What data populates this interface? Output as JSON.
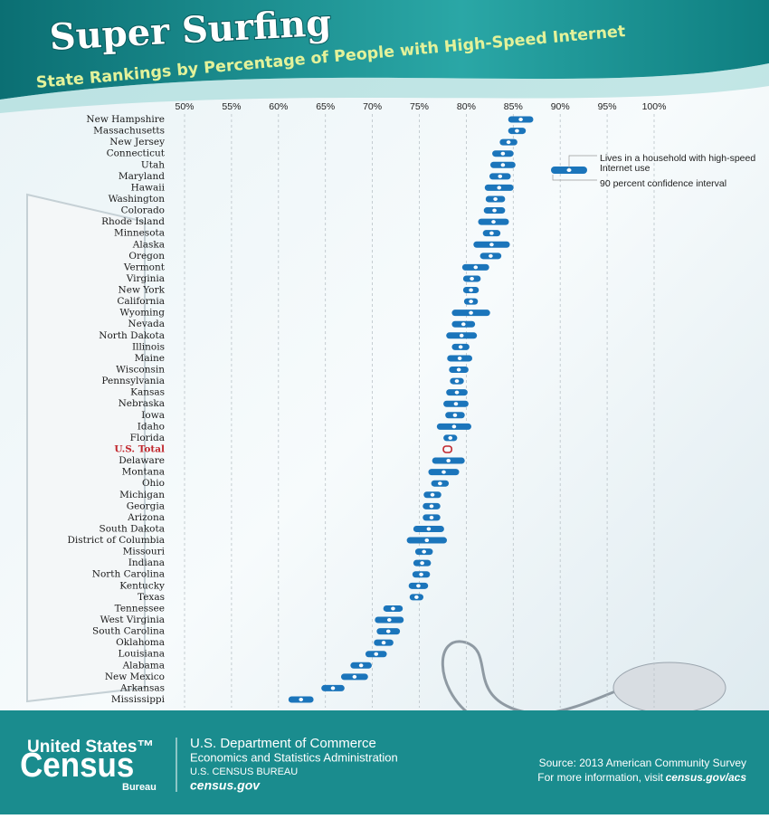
{
  "header": {
    "title": "Super Surfing",
    "subtitle": "State Rankings by Percentage of People with High-Speed Internet"
  },
  "chart_data": {
    "type": "dot-interval",
    "categories": [
      "New Hampshire",
      "Massachusetts",
      "New Jersey",
      "Connecticut",
      "Utah",
      "Maryland",
      "Hawaii",
      "Washington",
      "Colorado",
      "Rhode Island",
      "Minnesota",
      "Alaska",
      "Oregon",
      "Vermont",
      "Virginia",
      "New York",
      "California",
      "Wyoming",
      "Nevada",
      "North Dakota",
      "Illinois",
      "Maine",
      "Wisconsin",
      "Pennsylvania",
      "Kansas",
      "Nebraska",
      "Iowa",
      "Idaho",
      "Florida",
      "U.S. Total",
      "Delaware",
      "Montana",
      "Ohio",
      "Michigan",
      "Georgia",
      "Arizona",
      "South Dakota",
      "District of Columbia",
      "Missouri",
      "Indiana",
      "North Carolina",
      "Kentucky",
      "Texas",
      "Tennessee",
      "West Virginia",
      "South Carolina",
      "Oklahoma",
      "Louisiana",
      "Alabama",
      "New Mexico",
      "Arkansas",
      "Mississippi"
    ],
    "category_colors": [
      "#1a1a1a",
      "#1a1a1a",
      "#1a1a1a",
      "#1a1a1a",
      "#1a1a1a",
      "#1a1a1a",
      "#1a1a1a",
      "#1a1a1a",
      "#1a1a1a",
      "#1a1a1a",
      "#1a1a1a",
      "#1a1a1a",
      "#1a1a1a",
      "#1a1a1a",
      "#1a1a1a",
      "#1a1a1a",
      "#1a1a1a",
      "#1a1a1a",
      "#1a1a1a",
      "#1a1a1a",
      "#1a1a1a",
      "#1a1a1a",
      "#1a1a1a",
      "#1a1a1a",
      "#1a1a1a",
      "#1a1a1a",
      "#1a1a1a",
      "#1a1a1a",
      "#1a1a1a",
      "#c1272d",
      "#1a1a1a",
      "#1a1a1a",
      "#1a1a1a",
      "#1a1a1a",
      "#1a1a1a",
      "#1a1a1a",
      "#1a1a1a",
      "#1a1a1a",
      "#1a1a1a",
      "#1a1a1a",
      "#1a1a1a",
      "#1a1a1a",
      "#1a1a1a",
      "#1a1a1a",
      "#1a1a1a",
      "#1a1a1a",
      "#1a1a1a",
      "#1a1a1a",
      "#1a1a1a",
      "#1a1a1a",
      "#1a1a1a",
      "#1a1a1a"
    ],
    "series": [
      {
        "name": "Lives in a household with high-speed Internet use",
        "color": "#1b75bb",
        "values": [
          85.8,
          85.4,
          84.5,
          83.9,
          83.9,
          83.6,
          83.5,
          83.1,
          83.0,
          82.9,
          82.7,
          82.7,
          82.6,
          81.0,
          80.6,
          80.5,
          80.5,
          80.5,
          79.7,
          79.5,
          79.4,
          79.3,
          79.2,
          79.0,
          79.0,
          78.9,
          78.8,
          78.7,
          78.3,
          78.0,
          78.1,
          77.6,
          77.2,
          76.4,
          76.3,
          76.3,
          76.0,
          75.8,
          75.5,
          75.3,
          75.2,
          74.9,
          74.7,
          72.2,
          71.8,
          71.7,
          71.2,
          70.4,
          68.8,
          68.1,
          65.8,
          62.4
        ],
        "errors": [
          1.0,
          0.6,
          0.6,
          0.8,
          1.0,
          0.8,
          1.2,
          0.7,
          0.8,
          1.3,
          0.6,
          1.6,
          0.8,
          1.1,
          0.6,
          0.5,
          0.4,
          1.7,
          0.9,
          1.3,
          0.6,
          1.0,
          0.7,
          0.4,
          0.8,
          1.0,
          0.7,
          1.5,
          0.4,
          0.2,
          1.4,
          1.3,
          0.6,
          0.6,
          0.6,
          0.6,
          1.3,
          1.8,
          0.6,
          0.6,
          0.6,
          0.7,
          0.4,
          0.7,
          1.2,
          0.9,
          0.7,
          0.8,
          0.8,
          1.1,
          0.9,
          1.0
        ]
      }
    ],
    "error_label": "90 percent confidence interval",
    "xlim": [
      50,
      100
    ],
    "xticks": [
      {
        "value": 50,
        "label": "50%"
      },
      {
        "value": 55,
        "label": "55%"
      },
      {
        "value": 60,
        "label": "60%"
      },
      {
        "value": 65,
        "label": "65%"
      },
      {
        "value": 70,
        "label": "70%"
      },
      {
        "value": 75,
        "label": "75%"
      },
      {
        "value": 80,
        "label": "80%"
      },
      {
        "value": 85,
        "label": "85%"
      },
      {
        "value": 90,
        "label": "90%"
      },
      {
        "value": 95,
        "label": "95%"
      },
      {
        "value": 100,
        "label": "100%"
      }
    ],
    "grid": true
  },
  "footer": {
    "logo_top": "United States™",
    "logo_main": "Census",
    "logo_bottom": "Bureau",
    "dept": "U.S. Department of Commerce",
    "admin": "Economics and Statistics Administration",
    "bureau": "U.S. CENSUS BUREAU",
    "site": "census.gov",
    "source": "Source: 2013 American Community Survey",
    "more": "For more information, visit",
    "more_link": "census.gov/acs"
  }
}
